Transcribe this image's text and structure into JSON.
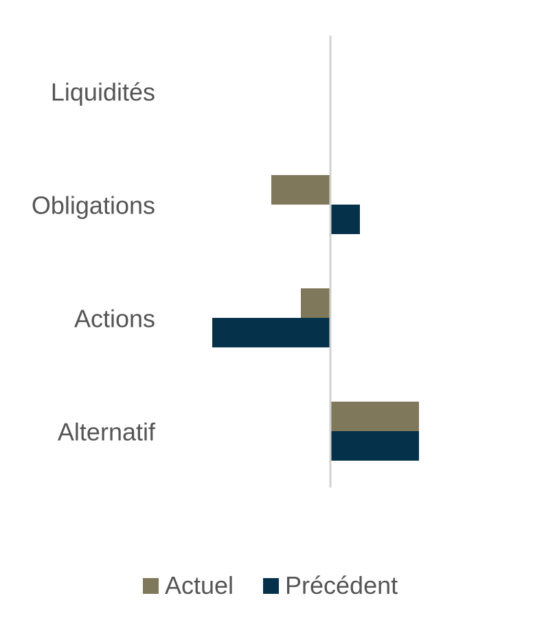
{
  "chart_data": {
    "type": "bar",
    "orientation": "horizontal",
    "categories": [
      "Liquidités",
      "Obligations",
      "Actions",
      "Alternatif"
    ],
    "series": [
      {
        "name": "Actuel",
        "color": "#7f785b",
        "values": [
          0,
          -2,
          -1,
          3
        ]
      },
      {
        "name": "Précédent",
        "color": "#05324a",
        "values": [
          0,
          1,
          -4,
          3
        ]
      }
    ],
    "xlim": [
      -4,
      3
    ],
    "grid": false,
    "legend": "bottom"
  }
}
